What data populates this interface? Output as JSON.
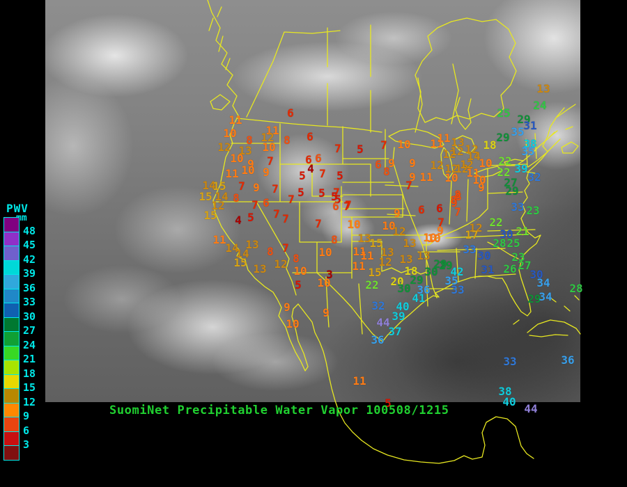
{
  "footer": {
    "title": "SuomiNet Precipitable Water Vapor 100508/1215",
    "color": "#20d030"
  },
  "legend": {
    "title": "PWV",
    "units": "mm",
    "tick_color": "#00e8e8",
    "ticks": [
      "48",
      "45",
      "42",
      "39",
      "36",
      "33",
      "30",
      "27",
      "24",
      "21",
      "18",
      "15",
      "12",
      "9",
      "6",
      "3"
    ],
    "box_colors": [
      "#800080",
      "#9030c8",
      "#7060cc",
      "#00d8d8",
      "#30a8dc",
      "#2088c8",
      "#1060b0",
      "#007830",
      "#10a034",
      "#38d824",
      "#a8e400",
      "#e8d800",
      "#b88800",
      "#ff8800",
      "#e84410",
      "#c81010",
      "#801010"
    ]
  },
  "map": {
    "outline_color": "#e8e820",
    "station_palette": {
      "r3": "#a80000",
      "r5": "#d81400",
      "r6": "#e42800",
      "r8": "#f05010",
      "o9": "#ff7c14",
      "g12": "#cc8810",
      "y15": "#d8a414",
      "y18": "#ded414",
      "c21": "#70e030",
      "c24": "#30c844",
      "g27": "#109038",
      "b30": "#2858c0",
      "b33": "#3078d8",
      "b34": "#38a0ec",
      "cy39": "#10ccdc",
      "p44": "#9080d8"
    },
    "stations": [
      [
        "6",
        417,
        163,
        "r6"
      ],
      [
        "11",
        338,
        173,
        "o9"
      ],
      [
        "10",
        330,
        192,
        "o9"
      ],
      [
        "8",
        358,
        202,
        "r8"
      ],
      [
        "11",
        391,
        188,
        "o9"
      ],
      [
        "12",
        384,
        198,
        "g12"
      ],
      [
        "10",
        386,
        212,
        "o9"
      ],
      [
        "8",
        412,
        202,
        "r8"
      ],
      [
        "12",
        322,
        212,
        "g12"
      ],
      [
        "13",
        352,
        217,
        "g12"
      ],
      [
        "10",
        340,
        228,
        "o9"
      ],
      [
        "9",
        360,
        236,
        "o9"
      ],
      [
        "7",
        388,
        232,
        "r6"
      ],
      [
        "9",
        382,
        248,
        "o9"
      ],
      [
        "11",
        333,
        250,
        "o9"
      ],
      [
        "10",
        356,
        245,
        "o9"
      ],
      [
        "6",
        445,
        197,
        "r6"
      ],
      [
        "6",
        443,
        230,
        "r6"
      ],
      [
        "6",
        457,
        228,
        "r8"
      ],
      [
        "4",
        446,
        243,
        "r3"
      ],
      [
        "5",
        434,
        253,
        "r5"
      ],
      [
        "7",
        463,
        250,
        "r6"
      ],
      [
        "5",
        488,
        253,
        "r5"
      ],
      [
        "7",
        485,
        214,
        "r6"
      ],
      [
        "5",
        517,
        215,
        "r5"
      ],
      [
        "7",
        551,
        209,
        "r6"
      ],
      [
        "14",
        300,
        267,
        "g12"
      ],
      [
        "15",
        315,
        268,
        "y15"
      ],
      [
        "7",
        347,
        268,
        "r6"
      ],
      [
        "9",
        368,
        270,
        "o9"
      ],
      [
        "7",
        395,
        272,
        "r6"
      ],
      [
        "15",
        295,
        283,
        "y15"
      ],
      [
        "14",
        318,
        283,
        "g12"
      ],
      [
        "8",
        339,
        285,
        "r8"
      ],
      [
        "12",
        313,
        296,
        "g12"
      ],
      [
        "15",
        302,
        310,
        "y15"
      ],
      [
        "5",
        432,
        277,
        "r5"
      ],
      [
        "7",
        418,
        287,
        "r6"
      ],
      [
        "5",
        462,
        278,
        "r5"
      ],
      [
        "6",
        382,
        292,
        "r8"
      ],
      [
        "7",
        366,
        295,
        "r6"
      ],
      [
        "5",
        485,
        287,
        "r5"
      ],
      [
        "7",
        483,
        277,
        "r6"
      ],
      [
        "6",
        482,
        297,
        "r8"
      ],
      [
        "7",
        498,
        297,
        "r6"
      ],
      [
        "4",
        342,
        317,
        "r3"
      ],
      [
        "5",
        360,
        313,
        "r5"
      ],
      [
        "7",
        397,
        308,
        "r6"
      ],
      [
        "7",
        410,
        315,
        "r6"
      ],
      [
        "7",
        457,
        322,
        "r6"
      ],
      [
        "5",
        480,
        283,
        "r5"
      ],
      [
        "7",
        500,
        295,
        "r6"
      ],
      [
        "11",
        315,
        345,
        "o9"
      ],
      [
        "14",
        333,
        357,
        "g12"
      ],
      [
        "13",
        362,
        352,
        "g12"
      ],
      [
        "14",
        348,
        365,
        "g12"
      ],
      [
        "15",
        345,
        378,
        "y15"
      ],
      [
        "13",
        373,
        387,
        "g12"
      ],
      [
        "8",
        388,
        362,
        "r8"
      ],
      [
        "12",
        403,
        380,
        "g12"
      ],
      [
        "7",
        410,
        357,
        "r6"
      ],
      [
        "8",
        425,
        372,
        "r8"
      ],
      [
        "10",
        431,
        390,
        "o9"
      ],
      [
        "5",
        428,
        410,
        "r5"
      ],
      [
        "10",
        465,
        407,
        "o9"
      ],
      [
        "3",
        473,
        395,
        "r3"
      ],
      [
        "10",
        420,
        466,
        "o9"
      ],
      [
        "9",
        412,
        442,
        "o9"
      ],
      [
        "9",
        468,
        450,
        "o9"
      ],
      [
        "10",
        467,
        363,
        "o9"
      ],
      [
        "8",
        480,
        345,
        "r8"
      ],
      [
        "13",
        523,
        343,
        "g12"
      ],
      [
        "15",
        540,
        350,
        "y15"
      ],
      [
        "11",
        516,
        362,
        "o9"
      ],
      [
        "11",
        527,
        368,
        "o9"
      ],
      [
        "13",
        556,
        363,
        "g12"
      ],
      [
        "12",
        553,
        377,
        "g12"
      ],
      [
        "11",
        515,
        383,
        "o9"
      ],
      [
        "13",
        588,
        350,
        "g12"
      ],
      [
        "13",
        583,
        373,
        "g12"
      ],
      [
        "13",
        608,
        368,
        "g12"
      ],
      [
        "10",
        623,
        343,
        "o9"
      ],
      [
        "15",
        538,
        392,
        "y15"
      ],
      [
        "18",
        590,
        390,
        "y18"
      ],
      [
        "20",
        570,
        405,
        "y18"
      ],
      [
        "22",
        534,
        410,
        "c21"
      ],
      [
        "29",
        598,
        403,
        "g27"
      ],
      [
        "30",
        619,
        391,
        "g27"
      ],
      [
        "30",
        580,
        415,
        "g27"
      ],
      [
        "29",
        640,
        382,
        "g27"
      ],
      [
        "36",
        608,
        417,
        "b34"
      ],
      [
        "41",
        601,
        429,
        "cy39"
      ],
      [
        "32",
        543,
        440,
        "b33"
      ],
      [
        "40",
        578,
        441,
        "cy39"
      ],
      [
        "39",
        572,
        455,
        "cy39"
      ],
      [
        "44",
        550,
        464,
        "p44"
      ],
      [
        "37",
        567,
        477,
        "cy39"
      ],
      [
        "36",
        542,
        489,
        "b34"
      ],
      [
        "11",
        516,
        548,
        "o9"
      ],
      [
        "5",
        557,
        580,
        "r5"
      ],
      [
        "9",
        570,
        307,
        "o9"
      ],
      [
        "6",
        605,
        302,
        "r6"
      ],
      [
        "6",
        631,
        300,
        "r5"
      ],
      [
        "9",
        652,
        292,
        "r8"
      ],
      [
        "8",
        658,
        283,
        "r8"
      ],
      [
        "7",
        657,
        305,
        "r8"
      ],
      [
        "10",
        508,
        323,
        "o9"
      ],
      [
        "10",
        558,
        325,
        "o9"
      ],
      [
        "12",
        573,
        333,
        "g12"
      ],
      [
        "7",
        633,
        320,
        "r6"
      ],
      [
        "9",
        632,
        332,
        "o9"
      ],
      [
        "10",
        617,
        342,
        "o9"
      ],
      [
        "6",
        543,
        237,
        "r8"
      ],
      [
        "9",
        562,
        235,
        "o9"
      ],
      [
        "8",
        555,
        247,
        "r8"
      ],
      [
        "10",
        580,
        208,
        "o9"
      ],
      [
        "9",
        592,
        235,
        "o9"
      ],
      [
        "9",
        592,
        255,
        "o9"
      ],
      [
        "7",
        587,
        267,
        "r6"
      ],
      [
        "11",
        612,
        255,
        "o9"
      ],
      [
        "12",
        627,
        238,
        "g12"
      ],
      [
        "11",
        627,
        207,
        "o9"
      ],
      [
        "11",
        637,
        199,
        "o9"
      ],
      [
        "13",
        657,
        205,
        "g12"
      ],
      [
        "12",
        645,
        222,
        "g12"
      ],
      [
        "12",
        656,
        218,
        "g12"
      ],
      [
        "12",
        648,
        243,
        "g12"
      ],
      [
        "12",
        663,
        243,
        "g12"
      ],
      [
        "10",
        648,
        256,
        "o9"
      ],
      [
        "11",
        679,
        249,
        "o9"
      ],
      [
        "10",
        688,
        259,
        "o9"
      ],
      [
        "9",
        691,
        270,
        "o9"
      ],
      [
        "8",
        657,
        280,
        "r8"
      ],
      [
        "8",
        651,
        288,
        "r8"
      ],
      [
        "12",
        683,
        328,
        "g12"
      ],
      [
        "17",
        677,
        338,
        "y15"
      ],
      [
        "10",
        697,
        235,
        "o9"
      ],
      [
        "12",
        670,
        237,
        "g12"
      ],
      [
        "14",
        680,
        225,
        "g12"
      ],
      [
        "12",
        677,
        215,
        "g12"
      ],
      [
        "18",
        703,
        209,
        "y18"
      ],
      [
        "29",
        722,
        198,
        "g27"
      ],
      [
        "25",
        723,
        163,
        "c24"
      ],
      [
        "24",
        775,
        152,
        "c24"
      ],
      [
        "29",
        752,
        172,
        "g27"
      ],
      [
        "31",
        761,
        181,
        "b30"
      ],
      [
        "35",
        743,
        190,
        "b34"
      ],
      [
        "38",
        761,
        207,
        "cy39"
      ],
      [
        "35",
        758,
        218,
        "b34"
      ],
      [
        "22",
        725,
        232,
        "c21"
      ],
      [
        "39",
        748,
        243,
        "cy39"
      ],
      [
        "22",
        723,
        248,
        "c21"
      ],
      [
        "27",
        733,
        263,
        "g27"
      ],
      [
        "29",
        735,
        275,
        "g27"
      ],
      [
        "32",
        767,
        255,
        "b33"
      ],
      [
        "33",
        743,
        298,
        "b33"
      ],
      [
        "23",
        765,
        303,
        "c24"
      ],
      [
        "13",
        780,
        128,
        "g12"
      ],
      [
        "22",
        712,
        320,
        "c21"
      ],
      [
        "30",
        727,
        337,
        "b30"
      ],
      [
        "21",
        750,
        333,
        "c21"
      ],
      [
        "28",
        717,
        350,
        "c24"
      ],
      [
        "25",
        737,
        350,
        "c24"
      ],
      [
        "33",
        674,
        359,
        "b33"
      ],
      [
        "30",
        695,
        368,
        "b30"
      ],
      [
        "23",
        744,
        370,
        "c24"
      ],
      [
        "27",
        753,
        382,
        "c24"
      ],
      [
        "26",
        732,
        387,
        "c24"
      ],
      [
        "30",
        770,
        395,
        "b30"
      ],
      [
        "34",
        780,
        407,
        "b34"
      ],
      [
        "29",
        767,
        430,
        "g27"
      ],
      [
        "34",
        783,
        427,
        "b34"
      ],
      [
        "29",
        632,
        380,
        "g27"
      ],
      [
        "31",
        700,
        388,
        "b30"
      ],
      [
        "33",
        732,
        520,
        "b33"
      ],
      [
        "36",
        815,
        518,
        "b34"
      ],
      [
        "38",
        725,
        563,
        "cy39"
      ],
      [
        "40",
        731,
        578,
        "cy39"
      ],
      [
        "44",
        762,
        588,
        "p44"
      ],
      [
        "28",
        827,
        415,
        "c24"
      ],
      [
        "42",
        656,
        391,
        "cy39"
      ],
      [
        "35",
        648,
        404,
        "b34"
      ],
      [
        "33",
        657,
        417,
        "b33"
      ]
    ]
  }
}
